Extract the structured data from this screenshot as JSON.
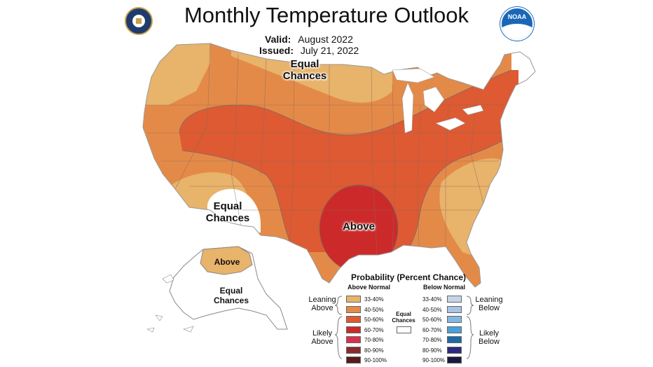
{
  "header": {
    "title": "Monthly Temperature Outlook",
    "valid_label": "Valid:",
    "valid_value": "August 2022",
    "issued_label": "Issued:",
    "issued_value": "July 21, 2022"
  },
  "logos": {
    "left": "commerce-seal-icon",
    "right": "noaa-logo-icon",
    "right_text": "NOAA"
  },
  "map_labels": {
    "north": "Equal\nChances",
    "southwest": "Equal\nChances",
    "south_central": "Above",
    "alaska_south": "Above",
    "alaska_north": "Equal\nChances"
  },
  "colors": {
    "above_33_40": "#e8b36a",
    "above_40_50": "#e48a48",
    "above_50_60": "#dd5a32",
    "above_60_70": "#cc2a2a",
    "above_70_80": "#d7304a",
    "above_80_90": "#8b2a2a",
    "above_90_100": "#5a1a1a",
    "below_33_40": "#c6d3ea",
    "below_40_50": "#a8c3e4",
    "below_50_60": "#84b6e2",
    "below_60_70": "#4a9fdc",
    "below_70_80": "#1f6aa8",
    "below_80_90": "#2c2a80",
    "below_90_100": "#1a1840",
    "equal": "#ffffff",
    "land_outline": "#999999"
  },
  "legend": {
    "title": "Probability (Percent Chance)",
    "above_header": "Above Normal",
    "below_header": "Below Normal",
    "equal_label": "Equal\nChances",
    "leaning_above": "Leaning\nAbove",
    "likely_above": "Likely\nAbove",
    "leaning_below": "Leaning\nBelow",
    "likely_below": "Likely\nBelow",
    "above": [
      {
        "label": "33-40%",
        "color": "#e8b36a"
      },
      {
        "label": "40-50%",
        "color": "#e48a48"
      },
      {
        "label": "50-60%",
        "color": "#dd5a32"
      },
      {
        "label": "60-70%",
        "color": "#cc2a2a"
      },
      {
        "label": "70-80%",
        "color": "#d7304a"
      },
      {
        "label": "80-90%",
        "color": "#8b2a2a"
      },
      {
        "label": "90-100%",
        "color": "#5a1a1a"
      }
    ],
    "below": [
      {
        "label": "33-40%",
        "color": "#c6d3ea"
      },
      {
        "label": "40-50%",
        "color": "#a8c3e4"
      },
      {
        "label": "50-60%",
        "color": "#84b6e2"
      },
      {
        "label": "60-70%",
        "color": "#4a9fdc"
      },
      {
        "label": "70-80%",
        "color": "#1f6aa8"
      },
      {
        "label": "80-90%",
        "color": "#2c2a80"
      },
      {
        "label": "90-100%",
        "color": "#1a1840"
      }
    ]
  }
}
